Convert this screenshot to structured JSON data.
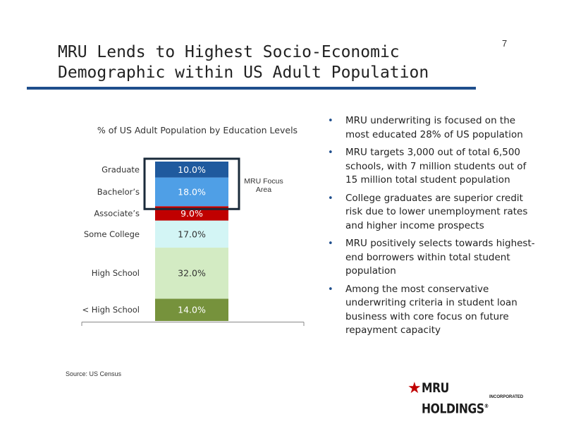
{
  "page_number": "7",
  "title_line1": "MRU Lends to Highest Socio-Economic",
  "title_line2": "Demographic within US Adult Population",
  "chart_data": {
    "type": "bar",
    "stacked": true,
    "title": "% of US Adult Population by Education Levels",
    "categories": [
      "< High School",
      "High School",
      "Some College",
      "Associate’s",
      "Bachelor’s",
      "Graduate"
    ],
    "values": [
      14.0,
      32.0,
      17.0,
      9.0,
      18.0,
      10.0
    ],
    "value_labels": [
      "14.0%",
      "32.0%",
      "17.0%",
      "9.0%",
      "18.0%",
      "10.0%"
    ],
    "colors": [
      "#76923c",
      "#d3ebc3",
      "#d3f5f5",
      "#c00000",
      "#4f9fe6",
      "#1f5a9e"
    ],
    "label_colors": [
      "#ffffff",
      "#333333",
      "#333333",
      "#ffffff",
      "#ffffff",
      "#ffffff"
    ],
    "annotation": "MRU Focus Area",
    "annotation_lines": [
      "MRU Focus",
      "Area"
    ],
    "highlight_categories": [
      "Bachelor’s",
      "Graduate"
    ]
  },
  "bullets": [
    "MRU underwriting is focused on the most educated 28% of US population",
    "MRU targets 3,000 out of total 6,500 schools, with 7 million students out of 15 million total student population",
    "College graduates are superior credit risk due to lower unemployment rates and higher income prospects",
    "MRU positively selects towards highest-end borrowers within total student population",
    "Among the most conservative underwriting criteria in student loan business with core focus on future repayment capacity"
  ],
  "bullet_marker": "•",
  "source": "Source: US Census",
  "logo": {
    "star": "★",
    "name": "MRU HOLDINGS",
    "registered": "®",
    "sub": "INCORPORATED",
    "name_color": "#1a1a1a",
    "star_color": "#c00000"
  },
  "accent_color": "#1f4e8c"
}
